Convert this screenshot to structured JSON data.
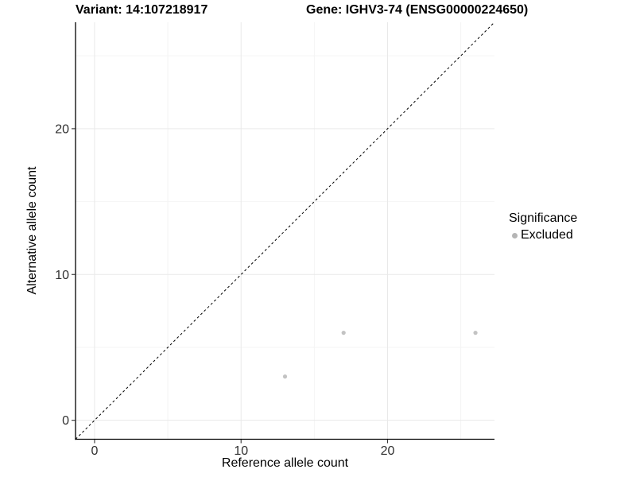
{
  "chart_data": {
    "type": "scatter",
    "titles": {
      "left": "Variant: 14:107218917",
      "right": "Gene: IGHV3-74 (ENSG00000224650)"
    },
    "xlabel": "Reference allele count",
    "ylabel": "Alternative allele count",
    "xlim": [
      -1.3,
      27.3
    ],
    "ylim": [
      -1.3,
      27.3
    ],
    "xticks": [
      0,
      10,
      20
    ],
    "yticks": [
      0,
      10,
      20
    ],
    "xticks_minor": [
      5,
      15,
      25
    ],
    "yticks_minor": [
      5,
      15,
      25
    ],
    "grid": true,
    "legend_position": "right",
    "reference_line": {
      "kind": "identity y=x",
      "style": "dashed",
      "color": "#000000"
    },
    "series": [
      {
        "name": "Excluded",
        "marker": "circle",
        "color": "#c3c3c3",
        "points": [
          [
            13,
            3
          ],
          [
            17,
            6
          ],
          [
            26,
            6
          ]
        ]
      }
    ],
    "legend": {
      "title": "Significance",
      "entries": [
        {
          "label": "Excluded",
          "color": "#b5b5b5"
        }
      ]
    },
    "colors": {
      "background": "#ffffff",
      "axis_line": "#000000",
      "tick_mark": "#333333",
      "tick_text": "#303030",
      "grid_major": "#e9e9e9",
      "grid_minor": "#f4f4f4"
    }
  }
}
